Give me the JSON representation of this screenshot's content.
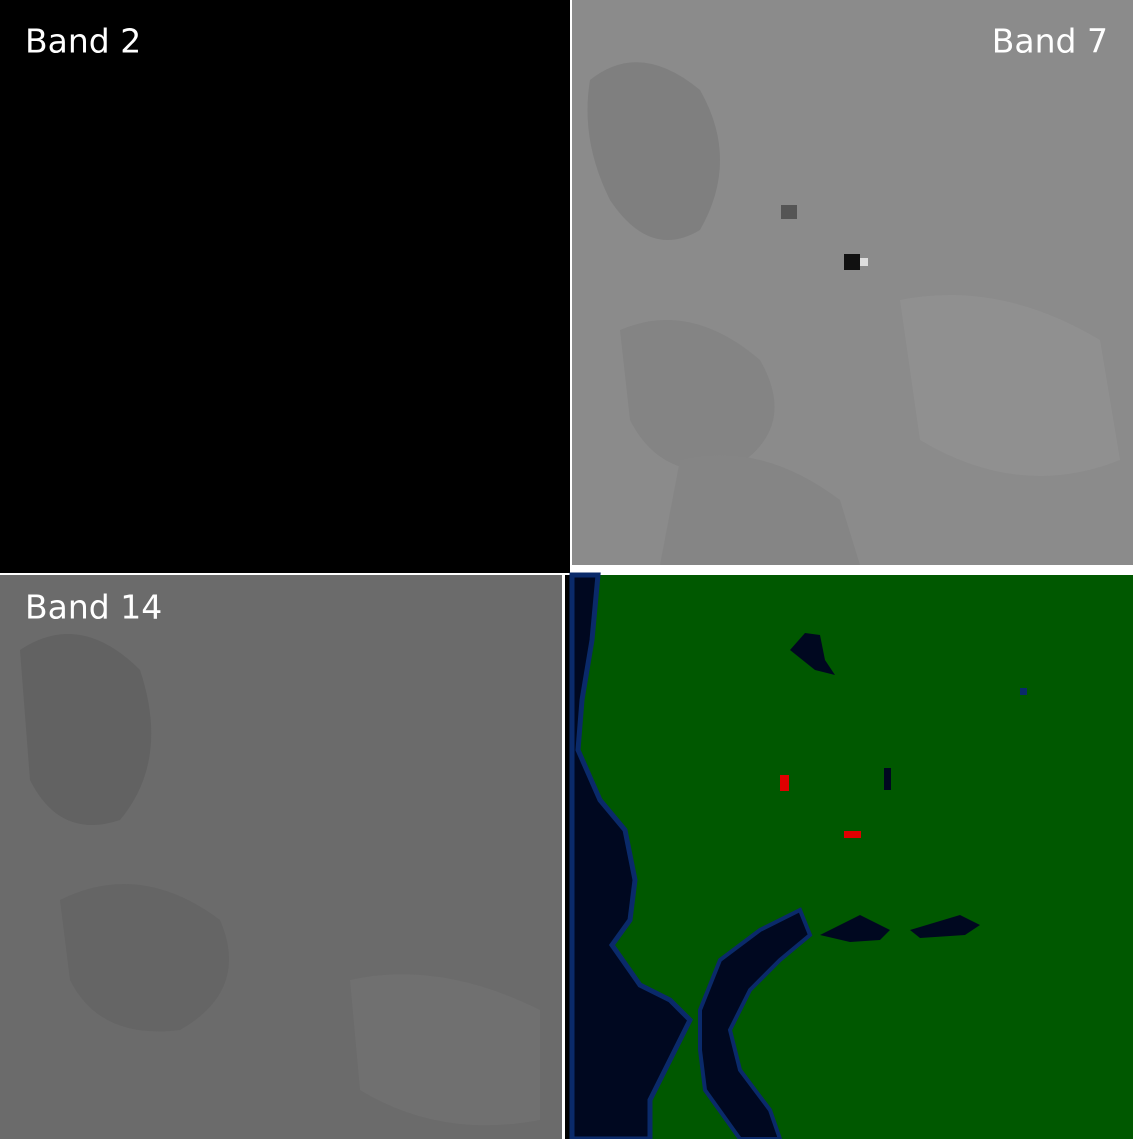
{
  "panels": [
    {
      "label": "Band 2"
    },
    {
      "label": "Band 7"
    },
    {
      "label": "Band 14"
    }
  ]
}
